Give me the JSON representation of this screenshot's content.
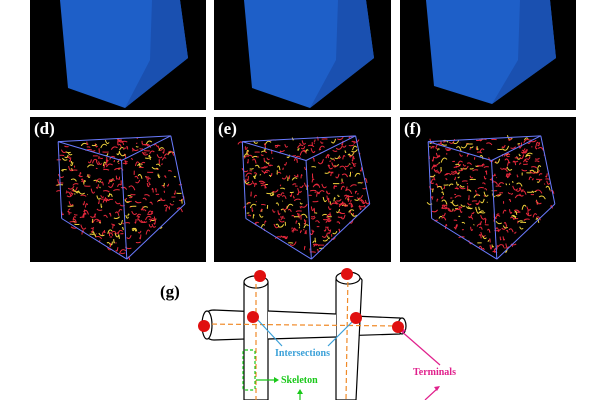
{
  "panels": {
    "a": {
      "label": ""
    },
    "b": {
      "label": ""
    },
    "c": {
      "label": ""
    },
    "d": {
      "label": "(d)"
    },
    "e": {
      "label": "(e)"
    },
    "f": {
      "label": "(f)"
    }
  },
  "schematic": {
    "panel_label": "(g)",
    "intersections_label": "Intersections",
    "skeleton_label": "Skeleton",
    "terminals_label": "Terminals"
  },
  "colors": {
    "solid": "#1e5fc8",
    "skeleton_red": "#e8283c",
    "skeleton_yellow": "#f0d23c",
    "box_edge": "#6a7bff",
    "intersections": "#3aa0d8",
    "skeleton": "#19c819",
    "terminals": "#e0208c",
    "node": "#e01010",
    "dashed": "#f08a28"
  }
}
